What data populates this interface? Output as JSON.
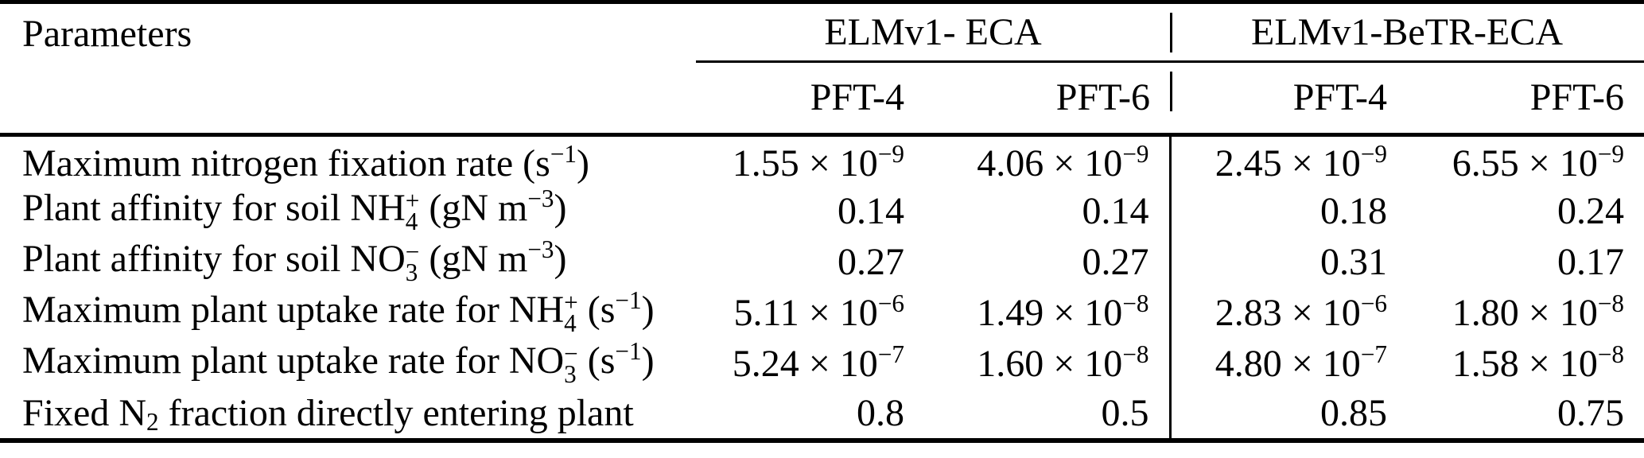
{
  "table": {
    "corner_header": "Parameters",
    "groups": [
      {
        "label": "ELMv1- ECA",
        "columns": [
          "PFT-4",
          "PFT-6"
        ]
      },
      {
        "label": "ELMv1-BeTR-ECA",
        "columns": [
          "PFT-4",
          "PFT-6"
        ]
      }
    ],
    "rows": [
      {
        "parameter": "Maximum nitrogen fixation rate (s^{−1})",
        "values": [
          "1.55 × 10^{−9}",
          "4.06 × 10^{−9}",
          "2.45 × 10^{−9}",
          "6.55 × 10^{−9}"
        ]
      },
      {
        "parameter": "Plant affinity for soil NH_{4}^{+} (gN m^{−3})",
        "values": [
          "0.14",
          "0.14",
          "0.18",
          "0.24"
        ]
      },
      {
        "parameter": "Plant affinity for soil NO_{3}^{−} (gN m^{−3})",
        "values": [
          "0.27",
          "0.27",
          "0.31",
          "0.17"
        ]
      },
      {
        "parameter": "Maximum plant uptake rate for NH_{4}^{+} (s^{−1})",
        "values": [
          "5.11 × 10^{−6}",
          "1.49 × 10^{−8}",
          "2.83 × 10^{−6}",
          "1.80 × 10^{−8}"
        ]
      },
      {
        "parameter": "Maximum plant uptake rate for NO_{3}^{−} (s^{−1})",
        "values": [
          "5.24 × 10^{−7}",
          "1.60 × 10^{−8}",
          "4.80 × 10^{−7}",
          "1.58 × 10^{−8}"
        ]
      },
      {
        "parameter": "Fixed N_{2} fraction directly entering plant",
        "values": [
          "0.8",
          "0.5",
          "0.85",
          "0.75"
        ]
      }
    ]
  },
  "colors": {
    "text": "#000000",
    "background": "#ffffff",
    "rule": "#000000"
  }
}
